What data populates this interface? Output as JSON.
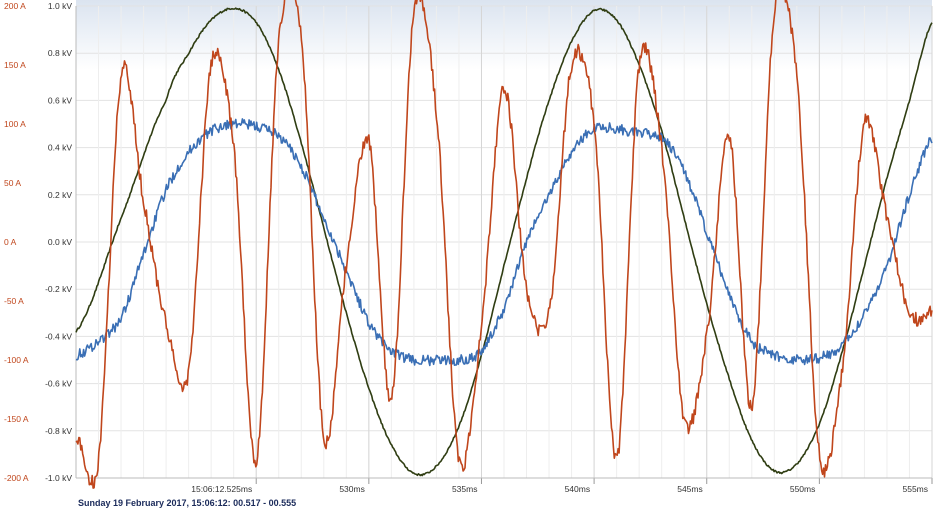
{
  "chart_data": {
    "type": "line",
    "footer_label": "Sunday 19 February 2017, 15:06:12: 00.517 - 00.555",
    "x_unit": "ms",
    "x_range": [
      517,
      555
    ],
    "x_ticks": [
      {
        "value": 525,
        "label": "15:06:12.525ms"
      },
      {
        "value": 530,
        "label": "530ms"
      },
      {
        "value": 535,
        "label": "535ms"
      },
      {
        "value": 540,
        "label": "540ms"
      },
      {
        "value": 545,
        "label": "545ms"
      },
      {
        "value": 550,
        "label": "550ms"
      },
      {
        "value": 555,
        "label": "555ms"
      }
    ],
    "current_axis": {
      "unit": "A",
      "range": [
        -200,
        200
      ],
      "ticks": [
        "200 A",
        "150 A",
        "100 A",
        "50 A",
        "0 A",
        "-50 A",
        "-100 A",
        "-150 A",
        "-200 A"
      ],
      "color": "#c0461c"
    },
    "voltage_axis": {
      "unit": "kV",
      "range": [
        -1.0,
        1.0
      ],
      "ticks": [
        "1.0 kV",
        "0.8 kV",
        "0.6 kV",
        "0.4 kV",
        "0.2 kV",
        "0.0 kV",
        "-0.2 kV",
        "-0.4 kV",
        "-0.6 kV",
        "-0.8 kV",
        "-1.0 kV"
      ],
      "color": "#333333"
    },
    "grid": true,
    "series": [
      {
        "axis": "voltage",
        "color": "#2f3d12",
        "x": [
          517,
          519,
          521,
          522,
          523,
          524,
          525,
          526,
          527,
          528,
          529,
          530,
          531,
          532,
          533,
          534,
          535,
          536,
          537,
          538,
          539,
          540,
          541,
          542,
          543,
          544,
          545,
          546,
          547,
          548,
          549,
          550,
          551,
          552,
          553,
          554,
          555
        ],
        "y": [
          -0.38,
          0.1,
          0.6,
          0.8,
          0.94,
          0.99,
          0.93,
          0.73,
          0.42,
          0.06,
          -0.3,
          -0.62,
          -0.86,
          -0.98,
          -0.95,
          -0.78,
          -0.48,
          -0.1,
          0.27,
          0.6,
          0.85,
          0.98,
          0.94,
          0.75,
          0.47,
          0.1,
          -0.26,
          -0.58,
          -0.84,
          -0.97,
          -0.94,
          -0.77,
          -0.47,
          -0.1,
          0.27,
          0.6,
          0.93
        ]
      },
      {
        "axis": "voltage",
        "color": "#3a6fb5",
        "x": [
          517,
          518,
          519,
          520,
          521,
          522,
          523,
          524,
          525,
          526,
          527,
          528,
          529,
          530,
          531,
          532,
          533,
          534,
          535,
          536,
          537,
          538,
          539,
          540,
          541,
          542,
          543,
          544,
          545,
          546,
          547,
          548,
          549,
          550,
          551,
          552,
          553,
          554,
          555
        ],
        "y": [
          -0.48,
          -0.42,
          -0.32,
          -0.05,
          0.22,
          0.38,
          0.47,
          0.5,
          0.49,
          0.45,
          0.32,
          0.1,
          -0.12,
          -0.34,
          -0.46,
          -0.5,
          -0.5,
          -0.5,
          -0.46,
          -0.28,
          0.0,
          0.2,
          0.38,
          0.48,
          0.48,
          0.46,
          0.44,
          0.3,
          0.04,
          -0.22,
          -0.42,
          -0.48,
          -0.5,
          -0.49,
          -0.44,
          -0.3,
          -0.1,
          0.2,
          0.44
        ]
      },
      {
        "axis": "current",
        "color": "#c0461c",
        "x": [
          517,
          518,
          519,
          520,
          521,
          522,
          523,
          524,
          525,
          526,
          527,
          528,
          529,
          530,
          531,
          532,
          533,
          534,
          535,
          536,
          537,
          538,
          539,
          540,
          541,
          542,
          543,
          544,
          545,
          546,
          547,
          548,
          549,
          550,
          551,
          552,
          553,
          554,
          555
        ],
        "y": [
          -165,
          -185,
          140,
          35,
          -70,
          -110,
          150,
          80,
          -185,
          170,
          175,
          -165,
          -20,
          85,
          -135,
          195,
          110,
          -185,
          -70,
          130,
          -40,
          -60,
          150,
          100,
          -185,
          150,
          80,
          -150,
          -80,
          90,
          -140,
          195,
          140,
          -180,
          -110,
          100,
          20,
          -60,
          -60
        ]
      }
    ]
  }
}
